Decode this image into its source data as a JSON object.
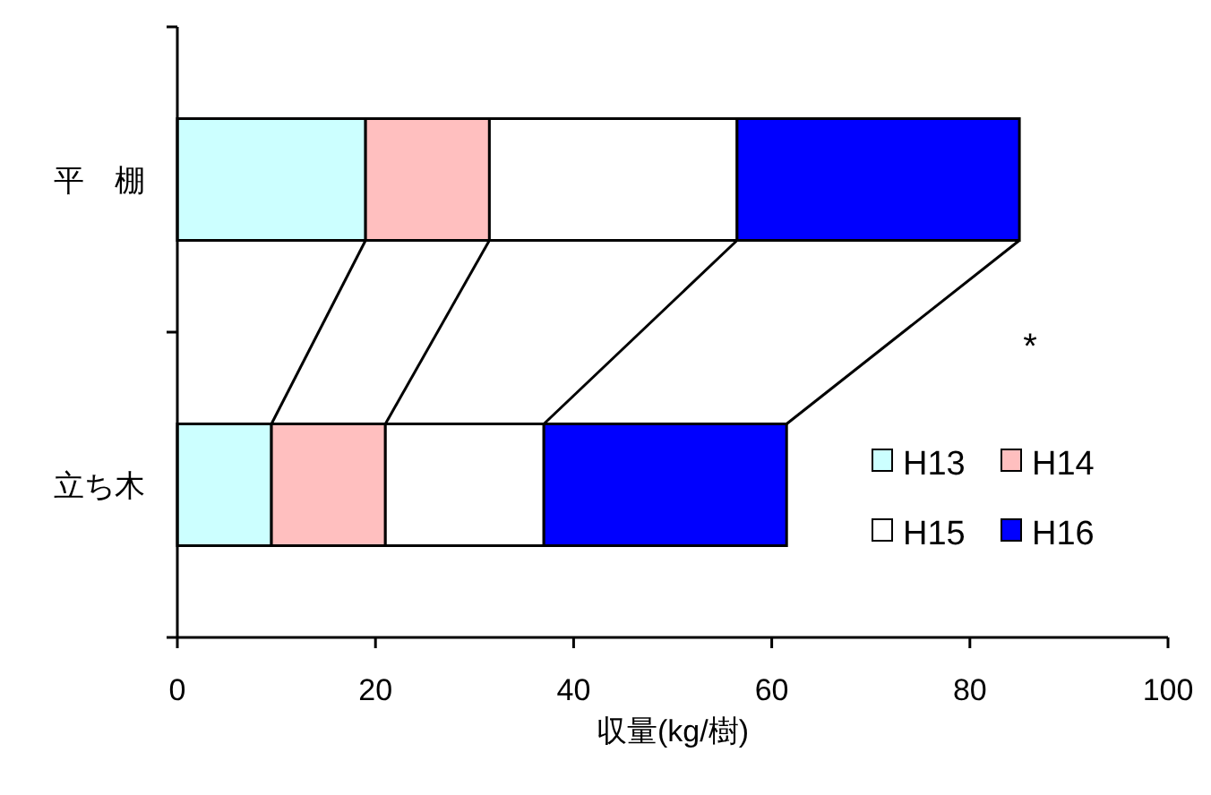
{
  "chart_data": {
    "type": "bar",
    "orientation": "horizontal",
    "stacked": true,
    "xlabel": "収量(kg/樹)",
    "categories": [
      "平　棚",
      "立ち木"
    ],
    "series": [
      {
        "name": "H13",
        "color": "#ccffff",
        "values": [
          19,
          9.5
        ]
      },
      {
        "name": "H14",
        "color": "#ffbfbf",
        "values": [
          12.5,
          11.5
        ]
      },
      {
        "name": "H15",
        "color": "#ffffff",
        "values": [
          25,
          16
        ]
      },
      {
        "name": "H16",
        "color": "#0000ff",
        "values": [
          28.5,
          24.5
        ]
      }
    ],
    "xlim": [
      0,
      100
    ],
    "xticks": [
      0,
      20,
      40,
      60,
      80,
      100
    ],
    "legend": "bottom right",
    "annotations": [
      "*"
    ]
  }
}
